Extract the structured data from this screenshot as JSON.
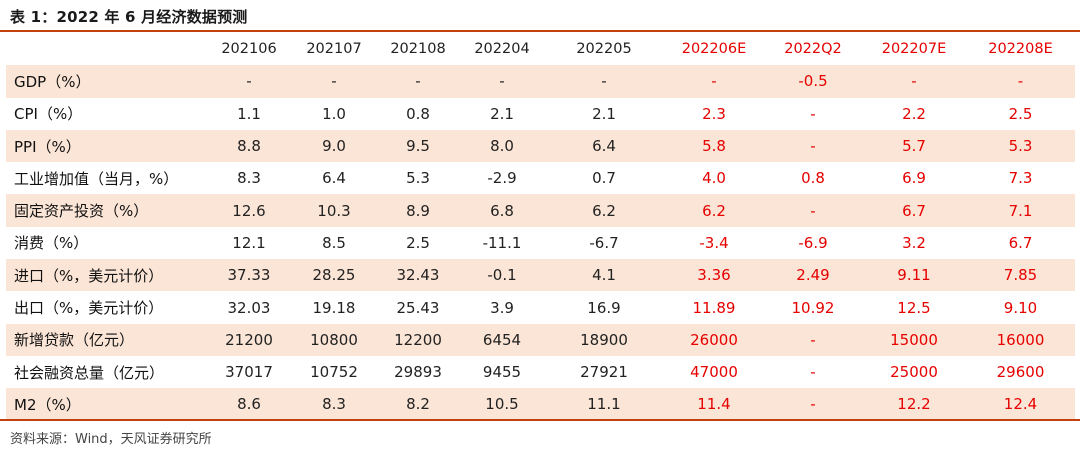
{
  "title": "表 1：2022 年 6 月经济数据预测",
  "source": "资料来源：Wind，天风证券研究所",
  "columns": [
    "202106",
    "202107",
    "202108",
    "202204",
    "202205",
    "202206E",
    "2022Q2",
    "202207E",
    "202208E"
  ],
  "forecast_columns": [
    "202206E",
    "2022Q2",
    "202207E",
    "202208E"
  ],
  "colors": {
    "accent": "#c2410c",
    "shade": "#fbe5d6",
    "forecast": "#e60000"
  },
  "rows": [
    {
      "label": "GDP（%）",
      "values": [
        "-",
        "-",
        "-",
        "-",
        "-",
        "-",
        "-0.5",
        "-",
        "-"
      ]
    },
    {
      "label": "CPI（%）",
      "values": [
        "1.1",
        "1.0",
        "0.8",
        "2.1",
        "2.1",
        "2.3",
        "-",
        "2.2",
        "2.5"
      ]
    },
    {
      "label": "PPI（%）",
      "values": [
        "8.8",
        "9.0",
        "9.5",
        "8.0",
        "6.4",
        "5.8",
        "-",
        "5.7",
        "5.3"
      ]
    },
    {
      "label": "工业增加值（当月，%）",
      "values": [
        "8.3",
        "6.4",
        "5.3",
        "-2.9",
        "0.7",
        "4.0",
        "0.8",
        "6.9",
        "7.3"
      ]
    },
    {
      "label": "固定资产投资（%）",
      "values": [
        "12.6",
        "10.3",
        "8.9",
        "6.8",
        "6.2",
        "6.2",
        "-",
        "6.7",
        "7.1"
      ]
    },
    {
      "label": "消费（%）",
      "values": [
        "12.1",
        "8.5",
        "2.5",
        "-11.1",
        "-6.7",
        "-3.4",
        "-6.9",
        "3.2",
        "6.7"
      ]
    },
    {
      "label": "进口（%，美元计价）",
      "values": [
        "37.33",
        "28.25",
        "32.43",
        "-0.1",
        "4.1",
        "3.36",
        "2.49",
        "9.11",
        "7.85"
      ]
    },
    {
      "label": "出口（%，美元计价）",
      "values": [
        "32.03",
        "19.18",
        "25.43",
        "3.9",
        "16.9",
        "11.89",
        "10.92",
        "12.5",
        "9.10"
      ]
    },
    {
      "label": "新增贷款（亿元）",
      "values": [
        "21200",
        "10800",
        "12200",
        "6454",
        "18900",
        "26000",
        "-",
        "15000",
        "16000"
      ]
    },
    {
      "label": "社会融资总量（亿元）",
      "values": [
        "37017",
        "10752",
        "29893",
        "9455",
        "27921",
        "47000",
        "-",
        "25000",
        "29600"
      ]
    },
    {
      "label": "M2（%）",
      "values": [
        "8.6",
        "8.3",
        "8.2",
        "10.5",
        "11.1",
        "11.4",
        "-",
        "12.2",
        "12.4"
      ]
    }
  ]
}
